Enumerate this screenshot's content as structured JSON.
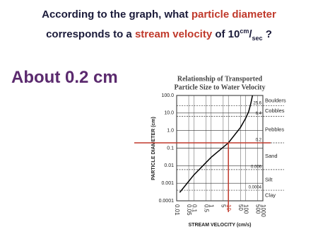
{
  "slide": {
    "question": [
      "According to the graph, what",
      "particle diameter",
      "corresponds to a",
      "stream velocity",
      "of 10",
      "cm",
      "/",
      "sec",
      "?"
    ],
    "answer": "About 0.2 cm"
  },
  "chart_data": {
    "type": "line",
    "title": [
      "Relationship of Transported",
      "Particle Size to Water Velocity"
    ],
    "x_label": "STREAM VELOCITY (cm/s)",
    "y_label": "PARTICLE DIAMETER (cm)",
    "series": [
      {
        "color": "#000000",
        "x": [
          0.015,
          0.1,
          1,
          10,
          50,
          100,
          150,
          200,
          250
        ],
        "values": [
          0.0003,
          0.003,
          0.03,
          0.2,
          1.5,
          5,
          12,
          35,
          100
        ]
      }
    ],
    "xlim": [
      0.01,
      1000
    ],
    "ylim": [
      0.0001,
      100
    ],
    "xticks": [
      0.01,
      0.05,
      0.1,
      0.5,
      1,
      5,
      10,
      50,
      100,
      500,
      1000
    ],
    "yticks": [
      {
        "value": 100,
        "label": "100.0"
      },
      {
        "value": 10,
        "label": "10.0"
      },
      {
        "value": 1,
        "label": "1.0"
      },
      0.1,
      0.01,
      0.001,
      0.0001
    ],
    "log_x": true,
    "log_y": true,
    "grid": true,
    "boundaries": [
      25.6,
      6.4,
      0.2,
      0.006,
      0.0004
    ],
    "classes": [
      "Boulders",
      "Cobbles",
      "Pebbles",
      "Sand",
      "Silt",
      "Clay"
    ],
    "reading": {
      "x": 10,
      "y": 0.2,
      "color": "#c0392b"
    }
  }
}
